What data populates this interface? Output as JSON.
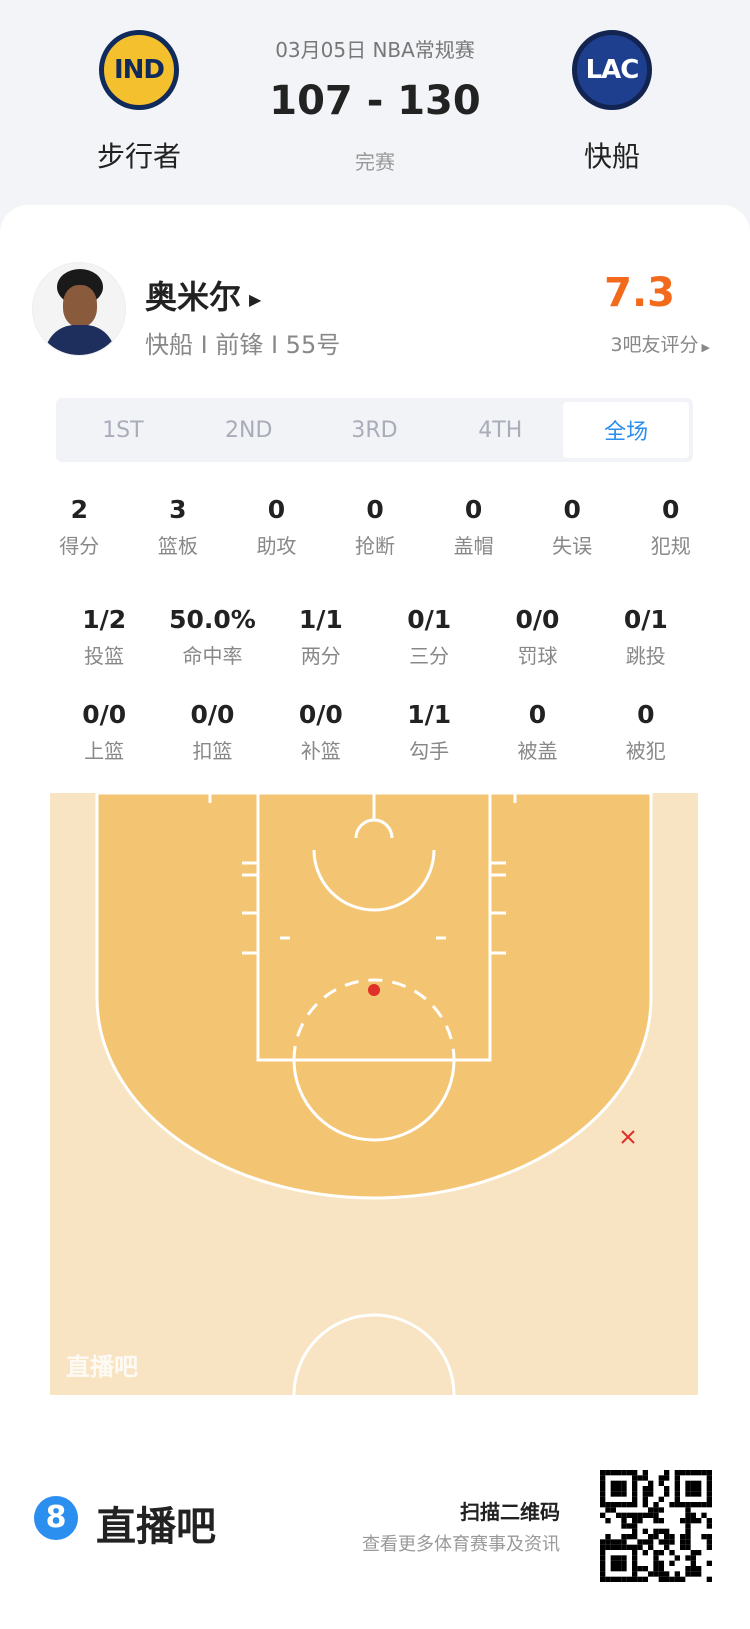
{
  "header": {
    "date_league": "03月05日 NBA常规赛",
    "score": "107 - 130",
    "status": "完赛",
    "home": {
      "abbr": "IND",
      "name": "步行者"
    },
    "away": {
      "abbr": "LAC",
      "name": "快船"
    }
  },
  "player": {
    "name": "奥米尔",
    "info": "快船 I 前锋 I 55号",
    "rating": "7.3",
    "rating_label": "3吧友评分"
  },
  "tabs": [
    {
      "label": "1ST"
    },
    {
      "label": "2ND"
    },
    {
      "label": "3RD"
    },
    {
      "label": "4TH"
    },
    {
      "label": "全场",
      "active": true
    }
  ],
  "stats_row1": [
    {
      "v": "2",
      "l": "得分"
    },
    {
      "v": "3",
      "l": "篮板"
    },
    {
      "v": "0",
      "l": "助攻"
    },
    {
      "v": "0",
      "l": "抢断"
    },
    {
      "v": "0",
      "l": "盖帽"
    },
    {
      "v": "0",
      "l": "失误"
    },
    {
      "v": "0",
      "l": "犯规"
    }
  ],
  "stats_row2": [
    {
      "v": "1/2",
      "l": "投篮"
    },
    {
      "v": "50.0%",
      "l": "命中率"
    },
    {
      "v": "1/1",
      "l": "两分"
    },
    {
      "v": "0/1",
      "l": "三分"
    },
    {
      "v": "0/0",
      "l": "罚球"
    },
    {
      "v": "0/1",
      "l": "跳投"
    }
  ],
  "stats_row3": [
    {
      "v": "0/0",
      "l": "上篮"
    },
    {
      "v": "0/0",
      "l": "扣篮"
    },
    {
      "v": "0/0",
      "l": "补篮"
    },
    {
      "v": "1/1",
      "l": "勾手"
    },
    {
      "v": "0",
      "l": "被盖"
    },
    {
      "v": "0",
      "l": "被犯"
    }
  ],
  "shot_chart": {
    "watermark": "直播吧",
    "shots": [
      {
        "result": "made"
      },
      {
        "result": "missed"
      }
    ]
  },
  "footer": {
    "brand": "直播吧",
    "qr_title": "扫描二维码",
    "qr_sub": "查看更多体育赛事及资讯"
  },
  "colors": {
    "accent": "#2b8ff0",
    "rating": "#f26a1b",
    "made": "#e0302a",
    "court_inner": "#f3c572",
    "court_outer": "#f8e4c2"
  }
}
